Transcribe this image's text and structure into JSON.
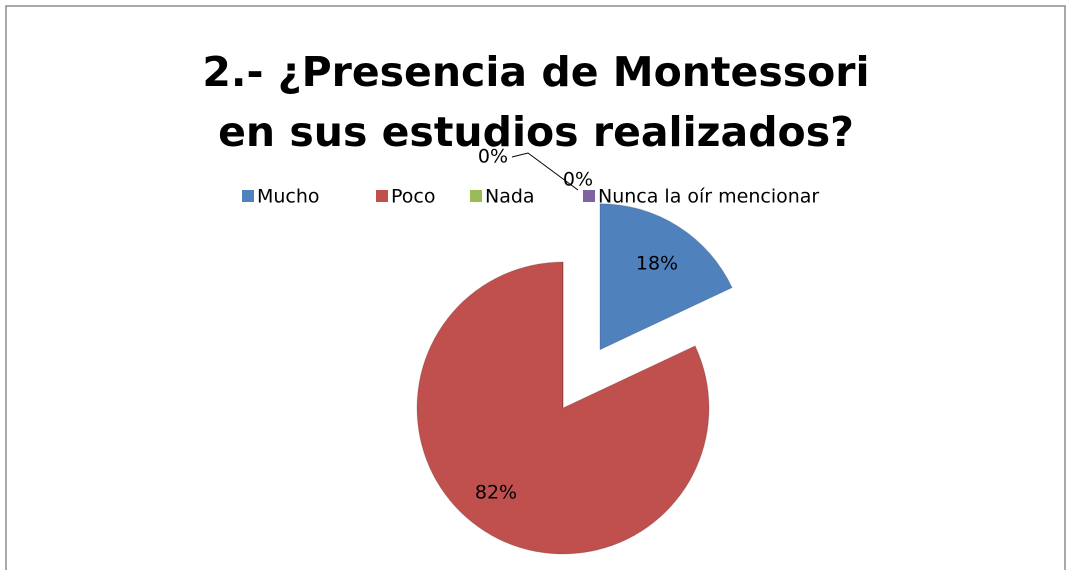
{
  "chart_data": {
    "type": "pie",
    "title": "2.- ¿Presencia de Montessori en sus estudios realizados?",
    "categories": [
      "Mucho",
      "Poco",
      "Nada",
      "Nunca la oír mencionar"
    ],
    "values": [
      18,
      82,
      0,
      0
    ],
    "value_labels": [
      "18%",
      "82%",
      "0%",
      "0%"
    ],
    "colors": [
      "#4f81bd",
      "#c0504d",
      "#9bbb59",
      "#8064a2"
    ],
    "legend": "top"
  }
}
